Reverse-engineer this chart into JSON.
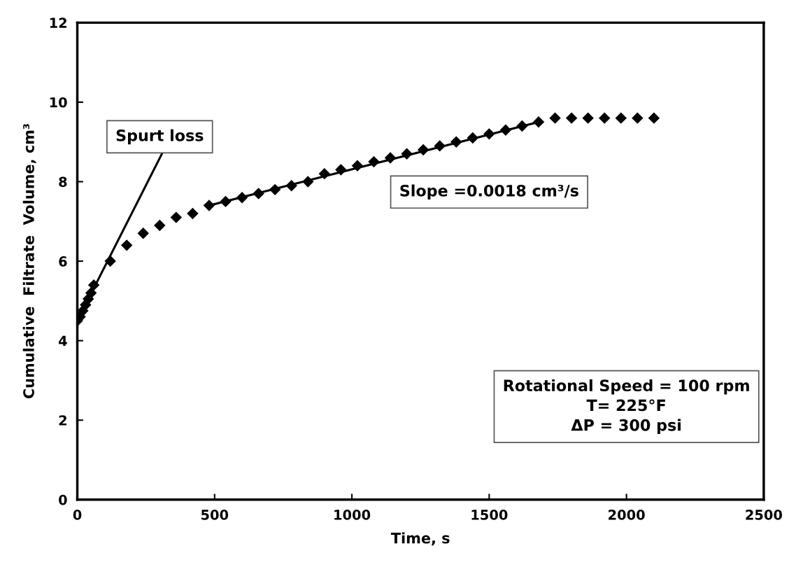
{
  "chart_data": {
    "type": "scatter",
    "xlabel": "Time, s",
    "ylabel": "Cumulative  Filtrate  Volume, cm³",
    "xlim": [
      0,
      2500
    ],
    "xticks": [
      0,
      500,
      1000,
      1500,
      2000,
      2500
    ],
    "ylim": [
      0,
      12
    ],
    "yticks": [
      0,
      2,
      4,
      6,
      8,
      10,
      12
    ],
    "grid": false,
    "legend": false,
    "series": [
      {
        "marker": "diamond",
        "color": "#000000",
        "x": [
          0,
          10,
          20,
          30,
          40,
          50,
          60,
          120,
          180,
          240,
          300,
          360,
          420,
          480,
          540,
          600,
          660,
          720,
          780,
          840,
          900,
          960,
          1020,
          1080,
          1140,
          1200,
          1260,
          1320,
          1380,
          1440,
          1500,
          1560,
          1620,
          1680,
          1740,
          1800,
          1860,
          1920,
          1980,
          2040,
          2100
        ],
        "values": [
          4.5,
          4.6,
          4.75,
          4.9,
          5.05,
          5.2,
          5.4,
          6.0,
          6.4,
          6.7,
          6.9,
          7.1,
          7.2,
          7.4,
          7.5,
          7.6,
          7.7,
          7.8,
          7.9,
          8.0,
          8.2,
          8.3,
          8.4,
          8.5,
          8.6,
          8.7,
          8.8,
          8.9,
          9.0,
          9.1,
          9.2,
          9.3,
          9.4,
          9.5,
          9.6,
          9.6,
          9.6,
          9.6,
          9.6,
          9.6,
          9.6
        ]
      },
      {
        "type": "line",
        "marker": "none",
        "line_style": "solid",
        "color": "#000000",
        "x": [
          0,
          308
        ],
        "values": [
          4.5,
          8.7
        ]
      },
      {
        "type": "line",
        "marker": "none",
        "line_style": "solid",
        "color": "#000000",
        "x": [
          480,
          1680
        ],
        "values": [
          7.4,
          9.5
        ]
      }
    ],
    "annotations": [
      "Spurt loss",
      "Slope =0.0018 cm³/s",
      "Rotational Speed = 100 rpm\nT= 225°F\nΔP = 300 psi"
    ]
  }
}
